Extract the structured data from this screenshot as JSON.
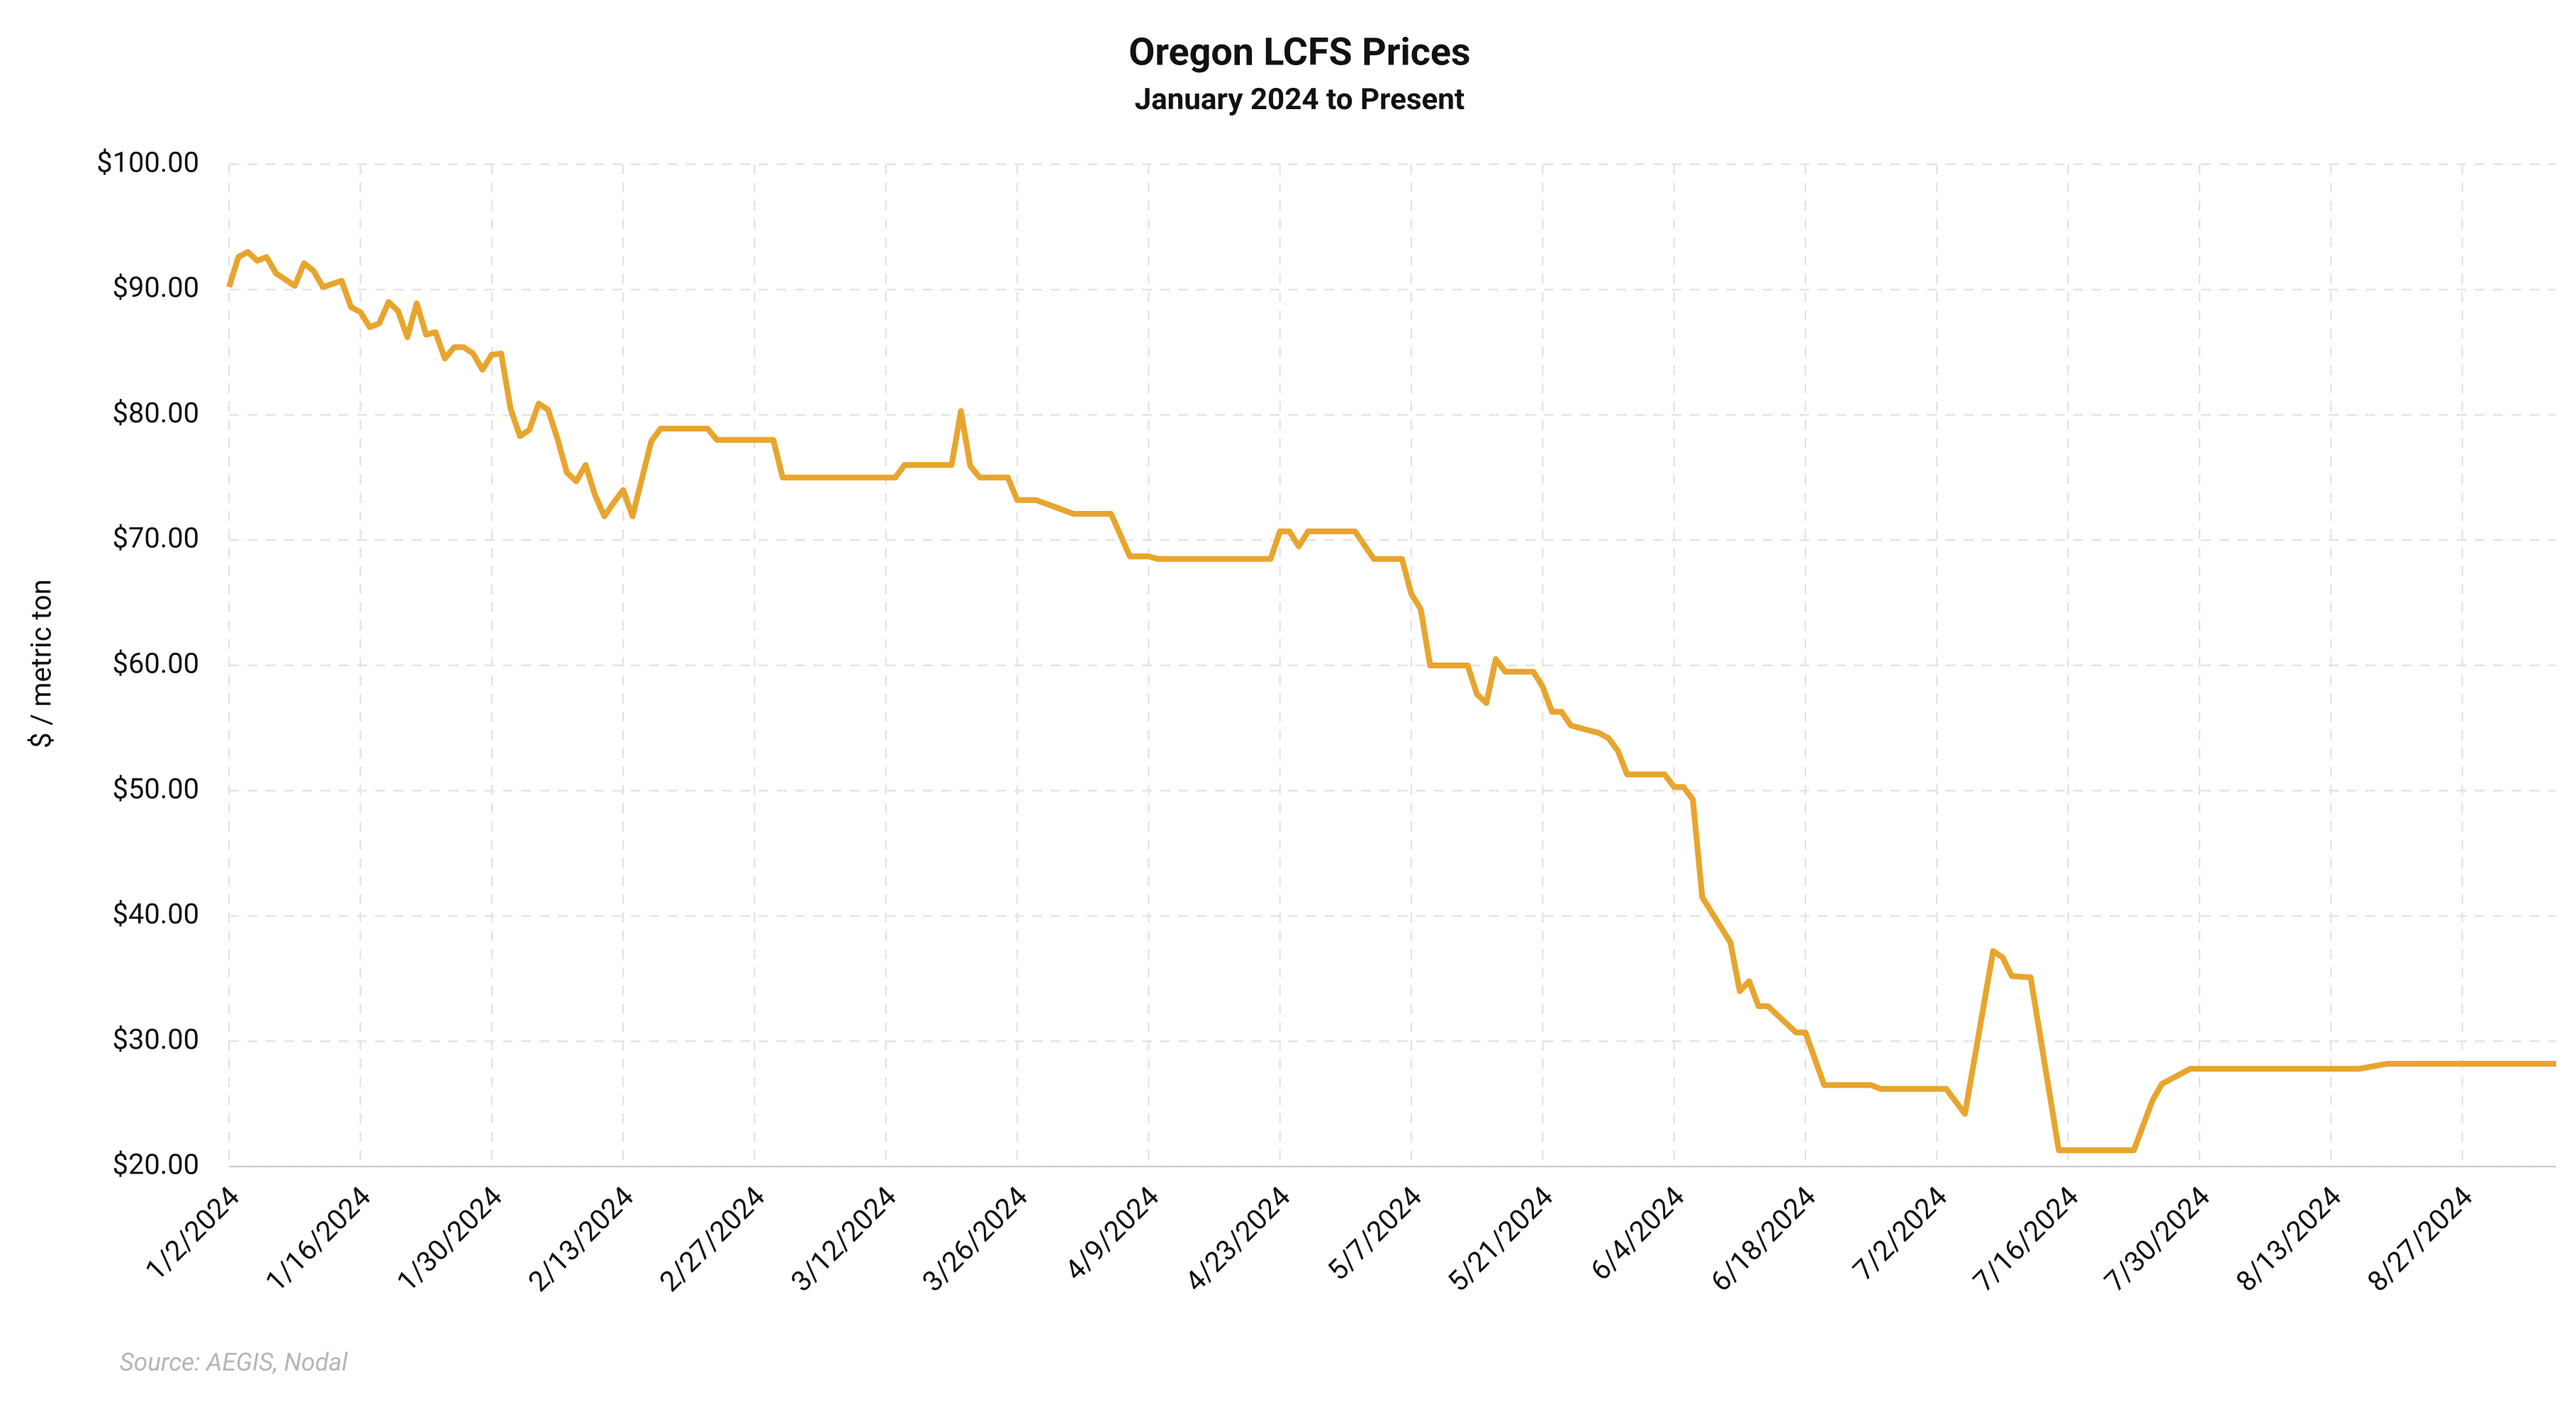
{
  "chart_data": {
    "type": "line",
    "title": "Oregon LCFS Prices",
    "subtitle": "January 2024 to Present",
    "y_label": "$ / metric ton",
    "source": "Source: AEGIS, Nodal",
    "color": "#e8a52e",
    "grid": true,
    "x": [
      "1/2/2024",
      "1/3/2024",
      "1/4/2024",
      "1/5/2024",
      "1/6/2024",
      "1/7/2024",
      "1/9/2024",
      "1/10/2024",
      "1/11/2024",
      "1/12/2024",
      "1/14/2024",
      "1/15/2024",
      "1/16/2024",
      "1/17/2024",
      "1/18/2024",
      "1/19/2024",
      "1/20/2024",
      "1/21/2024",
      "1/22/2024",
      "1/23/2024",
      "1/24/2024",
      "1/25/2024",
      "1/26/2024",
      "1/27/2024",
      "1/28/2024",
      "1/29/2024",
      "1/30/2024",
      "1/31/2024",
      "2/1/2024",
      "2/2/2024",
      "2/3/2024",
      "2/4/2024",
      "2/5/2024",
      "2/6/2024",
      "2/7/2024",
      "2/8/2024",
      "2/9/2024",
      "2/10/2024",
      "2/11/2024",
      "2/12/2024",
      "2/13/2024",
      "2/14/2024",
      "2/16/2024",
      "2/17/2024",
      "2/22/2024",
      "2/23/2024",
      "2/29/2024",
      "3/1/2024",
      "3/13/2024",
      "3/14/2024",
      "3/19/2024",
      "3/20/2024",
      "3/21/2024",
      "3/22/2024",
      "3/25/2024",
      "3/26/2024",
      "3/28/2024",
      "4/1/2024",
      "4/5/2024",
      "4/7/2024",
      "4/9/2024",
      "4/10/2024",
      "4/22/2024",
      "4/23/2024",
      "4/24/2024",
      "4/25/2024",
      "4/26/2024",
      "5/1/2024",
      "5/3/2024",
      "5/6/2024",
      "5/7/2024",
      "5/8/2024",
      "5/9/2024",
      "5/13/2024",
      "5/14/2024",
      "5/15/2024",
      "5/16/2024",
      "5/17/2024",
      "5/20/2024",
      "5/21/2024",
      "5/22/2024",
      "5/23/2024",
      "5/24/2024",
      "5/27/2024",
      "5/28/2024",
      "5/29/2024",
      "5/30/2024",
      "6/3/2024",
      "6/4/2024",
      "6/5/2024",
      "6/6/2024",
      "6/7/2024",
      "6/10/2024",
      "6/11/2024",
      "6/12/2024",
      "6/13/2024",
      "6/14/2024",
      "6/17/2024",
      "6/18/2024",
      "6/20/2024",
      "6/25/2024",
      "6/26/2024",
      "7/3/2024",
      "7/5/2024",
      "7/8/2024",
      "7/9/2024",
      "7/10/2024",
      "7/12/2024",
      "7/15/2024",
      "7/23/2024",
      "7/25/2024",
      "7/26/2024",
      "7/29/2024",
      "8/16/2024",
      "8/19/2024",
      "9/6/2024"
    ],
    "values": [
      90.2,
      92.6,
      93.0,
      92.3,
      92.6,
      91.3,
      90.3,
      92.1,
      91.5,
      90.2,
      90.7,
      88.6,
      88.2,
      87.0,
      87.3,
      89.0,
      88.3,
      86.2,
      88.9,
      86.4,
      86.6,
      84.5,
      85.4,
      85.4,
      84.9,
      83.6,
      84.8,
      84.9,
      80.5,
      78.3,
      78.8,
      80.9,
      80.4,
      78.1,
      75.4,
      74.7,
      76.0,
      73.6,
      71.9,
      73.0,
      74.0,
      71.9,
      77.9,
      78.9,
      78.9,
      78.0,
      78.0,
      75.0,
      75.0,
      76.0,
      76.0,
      80.3,
      75.9,
      75.0,
      75.0,
      73.2,
      73.2,
      72.1,
      72.1,
      68.7,
      68.7,
      68.5,
      68.5,
      70.7,
      70.7,
      69.5,
      70.7,
      70.7,
      68.5,
      68.5,
      65.7,
      64.5,
      60.0,
      60.0,
      57.7,
      57.0,
      60.5,
      59.5,
      59.5,
      58.3,
      56.3,
      56.3,
      55.2,
      54.6,
      54.2,
      53.2,
      51.3,
      51.3,
      50.3,
      50.3,
      49.3,
      41.5,
      37.9,
      34.0,
      34.8,
      32.8,
      32.8,
      30.7,
      30.7,
      26.5,
      26.5,
      26.2,
      26.2,
      24.2,
      37.2,
      36.7,
      35.2,
      35.1,
      21.3,
      21.3,
      25.3,
      26.6,
      27.8,
      27.8,
      28.2,
      28.2
    ],
    "xlim": [
      "1/2/2024",
      "9/6/2024"
    ],
    "xticks": [
      "1/2/2024",
      "1/16/2024",
      "1/30/2024",
      "2/13/2024",
      "2/27/2024",
      "3/12/2024",
      "3/26/2024",
      "4/9/2024",
      "4/23/2024",
      "5/7/2024",
      "5/21/2024",
      "6/4/2024",
      "6/18/2024",
      "7/2/2024",
      "7/16/2024",
      "7/30/2024",
      "8/13/2024",
      "8/27/2024"
    ],
    "ylim": [
      20,
      100
    ],
    "yticks": [
      {
        "value": 20,
        "label": "$20.00"
      },
      {
        "value": 30,
        "label": "$30.00"
      },
      {
        "value": 40,
        "label": "$40.00"
      },
      {
        "value": 50,
        "label": "$50.00"
      },
      {
        "value": 60,
        "label": "$60.00"
      },
      {
        "value": 70,
        "label": "$70.00"
      },
      {
        "value": 80,
        "label": "$80.00"
      },
      {
        "value": 90,
        "label": "$90.00"
      },
      {
        "value": 100,
        "label": "$100.00"
      }
    ]
  }
}
